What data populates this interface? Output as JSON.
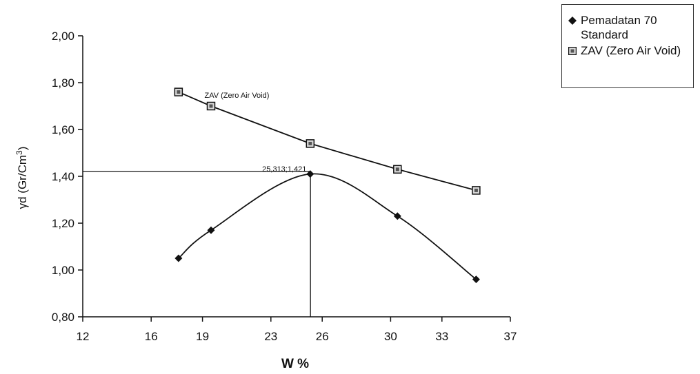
{
  "chart_data": {
    "type": "line",
    "xlabel": "W %",
    "ylabel": "γd (Gr/Cm",
    "ylabel_sup": "3",
    "ylabel_end": ")",
    "xlim": [
      12,
      37
    ],
    "ylim": [
      0.8,
      2.0
    ],
    "x_ticks": [
      12,
      16,
      19,
      23,
      26,
      30,
      33,
      37
    ],
    "x_tick_labels": [
      "12",
      "16",
      "19",
      "23",
      "26",
      "30",
      "33",
      "37"
    ],
    "y_ticks": [
      0.8,
      1.0,
      1.2,
      1.4,
      1.6,
      1.8,
      2.0
    ],
    "y_tick_labels": [
      "0,80",
      "1,00",
      "1,20",
      "1,40",
      "1,60",
      "1,80",
      "2,00"
    ],
    "grid": false,
    "legend_position": "top-right",
    "series": [
      {
        "name": "Pemadatan 70 Standard",
        "marker": "diamond",
        "smooth": true,
        "x": [
          17.6,
          19.5,
          25.3,
          30.4,
          35.0
        ],
        "y": [
          1.05,
          1.17,
          1.41,
          1.23,
          0.96
        ]
      },
      {
        "name": "ZAV (Zero Air Void)",
        "marker": "square",
        "smooth": false,
        "x": [
          17.6,
          19.5,
          25.3,
          30.4,
          35.0
        ],
        "y": [
          1.76,
          1.7,
          1.54,
          1.43,
          1.34
        ]
      }
    ],
    "annotations": [
      {
        "text": "ZAV (Zero Air Void)",
        "x": 19.6,
        "y": 1.735
      },
      {
        "text": "25,313;1,421",
        "x": 25.313,
        "y": 1.421
      }
    ],
    "optimum": {
      "x": 25.313,
      "y": 1.421
    }
  },
  "colors": {
    "ink": "#111111",
    "marker_fill": "#d9d9d9"
  }
}
